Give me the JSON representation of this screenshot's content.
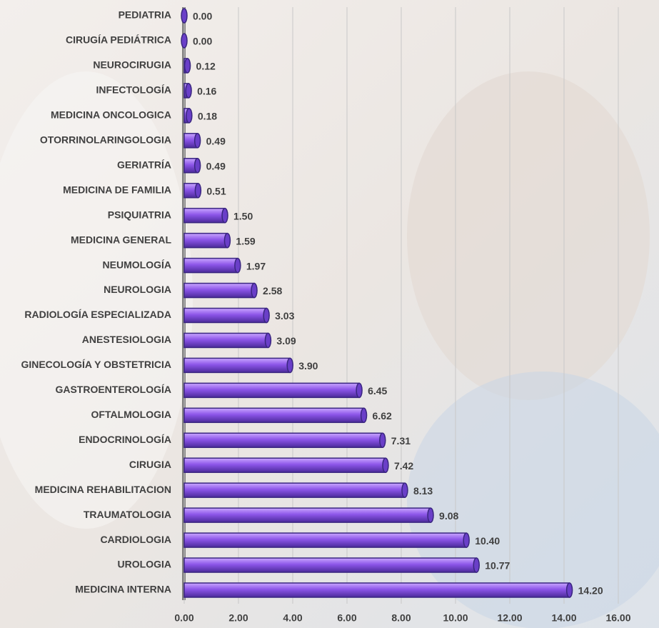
{
  "chart_data": {
    "type": "bar",
    "orientation": "horizontal",
    "categories": [
      "PEDIATRIA",
      "CIRUGÍA PEDIÁTRICA",
      "NEUROCIRUGIA",
      "INFECTOLOGÍA",
      "MEDICINA ONCOLOGICA",
      "OTORRINOLARINGOLOGIA",
      "GERIATRÍA",
      "MEDICINA DE FAMILIA",
      "PSIQUIATRIA",
      "MEDICINA GENERAL",
      "NEUMOLOGÍA",
      "NEUROLOGIA",
      "RADIOLOGÍA ESPECIALIZADA",
      "ANESTESIOLOGIA",
      "GINECOLOGÍA Y OBSTETRICIA",
      "GASTROENTEROLOGÍA",
      "OFTALMOLOGIA",
      "ENDOCRINOLOGÍA",
      "CIRUGIA",
      "MEDICINA REHABILITACION",
      "TRAUMATOLOGIA",
      "CARDIOLOGIA",
      "UROLOGIA",
      "MEDICINA INTERNA"
    ],
    "values": [
      0,
      0,
      0.12,
      0.16,
      0.18,
      0.49,
      0.49,
      0.51,
      1.5,
      1.59,
      1.97,
      2.58,
      3.03,
      3.09,
      3.9,
      6.45,
      6.62,
      7.31,
      7.42,
      8.13,
      9.08,
      10.4,
      10.77,
      14.2
    ],
    "value_labels": [
      "0.00",
      "0.00",
      "0.12",
      "0.16",
      "0.18",
      "0.49",
      "0.49",
      "0.51",
      "1.50",
      "1.59",
      "1.97",
      "2.58",
      "3.03",
      "3.09",
      "3.90",
      "6.45",
      "6.62",
      "7.31",
      "7.42",
      "8.13",
      "9.08",
      "10.40",
      "10.77",
      "14.20"
    ],
    "color": "#8c55e8",
    "xlim": [
      0,
      16
    ],
    "xticks": [
      {
        "value": 0,
        "label": "0.00"
      },
      {
        "value": 2,
        "label": "2.00"
      },
      {
        "value": 4,
        "label": "4.00"
      },
      {
        "value": 6,
        "label": "6.00"
      },
      {
        "value": 8,
        "label": "8.00"
      },
      {
        "value": 10,
        "label": "10.00"
      },
      {
        "value": 12,
        "label": "12.00"
      },
      {
        "value": 14,
        "label": "14.00"
      },
      {
        "value": 16,
        "label": "16.00"
      }
    ],
    "grid": true
  }
}
